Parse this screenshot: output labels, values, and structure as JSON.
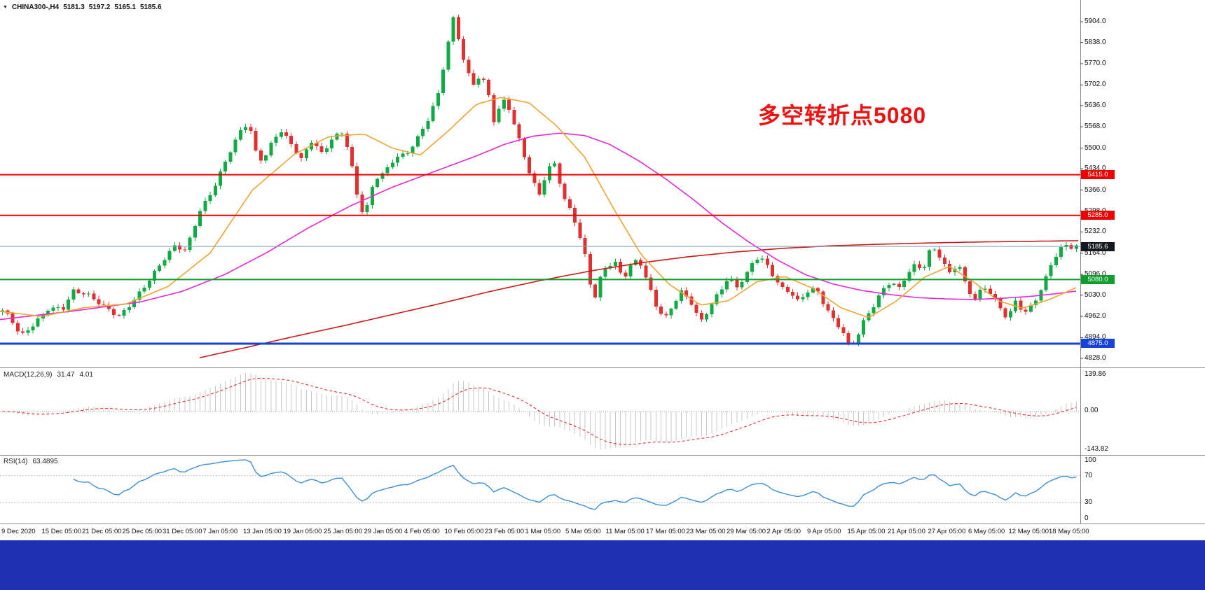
{
  "window": {
    "symbol_info": {
      "symbol": "CHINA300-,H4",
      "open": "5181.3",
      "high": "5197.2",
      "low": "5165.1",
      "close": "5185.6"
    },
    "annotation": "多空转折点5080"
  },
  "colors": {
    "bull": "#10ab44",
    "bear": "#e03030",
    "ma_fast": "#f0a432",
    "ma_mid": "#e428d2",
    "ma_slow": "#cc1a1a",
    "hline_red": "#ee0000",
    "hline_green": "#0f9d2e",
    "hline_blue": "#1542d8",
    "current_price_line": "#7f9fbf",
    "current_price_bg": "#151a22",
    "macd_hist": "#c9c9c9",
    "macd_signal": "#dd2222",
    "rsi_line": "#3c8fd4",
    "annotation_red": "#f01010",
    "taskbar_blue": "#1f2fb4"
  },
  "price_axis": {
    "ticks": [
      "5904.0",
      "5838.0",
      "5770.0",
      "5702.0",
      "5636.0",
      "5568.0",
      "5500.0",
      "5434.0",
      "5366.0",
      "5298.0",
      "5232.0",
      "5164.0",
      "5096.0",
      "5030.0",
      "4962.0",
      "4894.0",
      "4828.0"
    ],
    "tick_prices": [
      5904,
      5838,
      5770,
      5702,
      5636,
      5568,
      5500,
      5434,
      5366,
      5298,
      5232,
      5164,
      5096,
      5030,
      4962,
      4894,
      4828
    ],
    "special_labels": [
      {
        "value": "5415.0",
        "price": 5415,
        "bg": "#ee0000"
      },
      {
        "value": "5285.0",
        "price": 5285,
        "bg": "#ee0000"
      },
      {
        "value": "5185.6",
        "price": 5185.6,
        "bg": "#151a22"
      },
      {
        "value": "5080.0",
        "price": 5080,
        "bg": "#0f9d2e"
      },
      {
        "value": "4875.0",
        "price": 4875,
        "bg": "#1542d8"
      }
    ]
  },
  "time_axis": {
    "labels": [
      "9 Dec 2020",
      "15 Dec 05:00",
      "21 Dec 05:00",
      "25 Dec 05:00",
      "31 Dec 05:00",
      "7 Jan 05:00",
      "13 Jan 05:00",
      "19 Jan 05:00",
      "25 Jan 05:00",
      "29 Jan 05:00",
      "4 Feb 05:00",
      "10 Feb 05:00",
      "23 Feb 05:00",
      "1 Mar 05:00",
      "5 Mar 05:00",
      "11 Mar 05:00",
      "17 Mar 05:00",
      "23 Mar 05:00",
      "29 Mar 05:00",
      "2 Apr 05:00",
      "9 Apr 05:00",
      "15 Apr 05:00",
      "21 Apr 05:00",
      "27 Apr 05:00",
      "6 May 05:00",
      "12 May 05:00",
      "18 May 05:00"
    ]
  },
  "indicators": {
    "macd": {
      "label": "MACD(12,26,9)",
      "value": "31.47",
      "signal_value": "4.01",
      "axis": [
        "139.86",
        "0.00",
        "-143.82"
      ],
      "params": {
        "fast": 12,
        "slow": 26,
        "signal": 9
      }
    },
    "rsi": {
      "label": "RSI(14)",
      "value": "63.4895",
      "axis": [
        "100",
        "70",
        "30",
        "0"
      ],
      "levels": [
        70,
        30
      ],
      "period": 14
    }
  },
  "chart_data": {
    "type": "candlestick",
    "symbol": "CHINA300-",
    "timeframe": "H4",
    "visible_range": {
      "start": "9 Dec 2020",
      "end": "18 May 2021"
    },
    "candle_count": 213,
    "current_price": 5185.6,
    "horizontal_lines": [
      {
        "price": 5415,
        "color": "#ee0000",
        "width": 2
      },
      {
        "price": 5285,
        "color": "#ee0000",
        "width": 2
      },
      {
        "price": 5080,
        "color": "#0f9d2e",
        "width": 2
      },
      {
        "price": 4875,
        "color": "#1542d8",
        "width": 3
      }
    ],
    "price_keyframes": [
      [
        0,
        4985
      ],
      [
        15,
        4955
      ],
      [
        30,
        4900
      ],
      [
        50,
        4945
      ],
      [
        70,
        4990
      ],
      [
        90,
        4985
      ],
      [
        105,
        5040
      ],
      [
        125,
        5030
      ],
      [
        150,
        4995
      ],
      [
        170,
        4965
      ],
      [
        190,
        5010
      ],
      [
        210,
        5065
      ],
      [
        230,
        5130
      ],
      [
        250,
        5190
      ],
      [
        265,
        5175
      ],
      [
        285,
        5300
      ],
      [
        305,
        5370
      ],
      [
        325,
        5470
      ],
      [
        345,
        5560
      ],
      [
        355,
        5580
      ],
      [
        365,
        5490
      ],
      [
        375,
        5460
      ],
      [
        390,
        5530
      ],
      [
        400,
        5560
      ],
      [
        415,
        5515
      ],
      [
        430,
        5460
      ],
      [
        445,
        5520
      ],
      [
        460,
        5480
      ],
      [
        475,
        5535
      ],
      [
        490,
        5555
      ],
      [
        500,
        5470
      ],
      [
        510,
        5350
      ],
      [
        520,
        5280
      ],
      [
        535,
        5400
      ],
      [
        550,
        5420
      ],
      [
        565,
        5470
      ],
      [
        580,
        5480
      ],
      [
        595,
        5530
      ],
      [
        610,
        5590
      ],
      [
        625,
        5670
      ],
      [
        640,
        5840
      ],
      [
        648,
        5920
      ],
      [
        656,
        5830
      ],
      [
        665,
        5750
      ],
      [
        675,
        5700
      ],
      [
        685,
        5730
      ],
      [
        695,
        5700
      ],
      [
        705,
        5590
      ],
      [
        713,
        5630
      ],
      [
        722,
        5665
      ],
      [
        732,
        5590
      ],
      [
        745,
        5500
      ],
      [
        758,
        5400
      ],
      [
        770,
        5350
      ],
      [
        782,
        5430
      ],
      [
        792,
        5450
      ],
      [
        805,
        5340
      ],
      [
        818,
        5290
      ],
      [
        830,
        5200
      ],
      [
        840,
        5120
      ],
      [
        846,
        4990
      ],
      [
        854,
        5070
      ],
      [
        865,
        5120
      ],
      [
        878,
        5130
      ],
      [
        890,
        5080
      ],
      [
        902,
        5130
      ],
      [
        912,
        5145
      ],
      [
        925,
        5070
      ],
      [
        938,
        4990
      ],
      [
        950,
        4960
      ],
      [
        962,
        5005
      ],
      [
        972,
        5040
      ],
      [
        985,
        5010
      ],
      [
        1000,
        4940
      ],
      [
        1012,
        4985
      ],
      [
        1025,
        5035
      ],
      [
        1040,
        5090
      ],
      [
        1052,
        5060
      ],
      [
        1065,
        5095
      ],
      [
        1078,
        5150
      ],
      [
        1090,
        5140
      ],
      [
        1102,
        5095
      ],
      [
        1115,
        5050
      ],
      [
        1128,
        5040
      ],
      [
        1140,
        5010
      ],
      [
        1152,
        5045
      ],
      [
        1165,
        5055
      ],
      [
        1178,
        4995
      ],
      [
        1190,
        4950
      ],
      [
        1202,
        4915
      ],
      [
        1212,
        4865
      ],
      [
        1222,
        4885
      ],
      [
        1235,
        4955
      ],
      [
        1248,
        5000
      ],
      [
        1260,
        5050
      ],
      [
        1272,
        5080
      ],
      [
        1282,
        5050
      ],
      [
        1294,
        5095
      ],
      [
        1306,
        5125
      ],
      [
        1318,
        5110
      ],
      [
        1330,
        5185
      ],
      [
        1342,
        5150
      ],
      [
        1355,
        5100
      ],
      [
        1368,
        5135
      ],
      [
        1380,
        5055
      ],
      [
        1392,
        5020
      ],
      [
        1404,
        5060
      ],
      [
        1416,
        5030
      ],
      [
        1428,
        4985
      ],
      [
        1438,
        4950
      ],
      [
        1450,
        5010
      ],
      [
        1462,
        4970
      ],
      [
        1475,
        5005
      ],
      [
        1488,
        5060
      ],
      [
        1500,
        5130
      ],
      [
        1512,
        5175
      ],
      [
        1522,
        5190
      ],
      [
        1532,
        5178
      ],
      [
        1540,
        5186
      ]
    ],
    "ma_fast_keyframes": [
      [
        0,
        4978
      ],
      [
        60,
        4962
      ],
      [
        120,
        4990
      ],
      [
        180,
        5002
      ],
      [
        240,
        5058
      ],
      [
        300,
        5165
      ],
      [
        360,
        5365
      ],
      [
        420,
        5480
      ],
      [
        470,
        5537
      ],
      [
        520,
        5545
      ],
      [
        560,
        5500
      ],
      [
        600,
        5478
      ],
      [
        640,
        5555
      ],
      [
        680,
        5640
      ],
      [
        715,
        5662
      ],
      [
        755,
        5645
      ],
      [
        795,
        5570
      ],
      [
        835,
        5470
      ],
      [
        875,
        5310
      ],
      [
        915,
        5160
      ],
      [
        955,
        5065
      ],
      [
        1000,
        4998
      ],
      [
        1040,
        5012
      ],
      [
        1080,
        5072
      ],
      [
        1120,
        5090
      ],
      [
        1160,
        5052
      ],
      [
        1200,
        4990
      ],
      [
        1240,
        4958
      ],
      [
        1280,
        5012
      ],
      [
        1320,
        5088
      ],
      [
        1355,
        5122
      ],
      [
        1390,
        5072
      ],
      [
        1425,
        5012
      ],
      [
        1460,
        4988
      ],
      [
        1500,
        5018
      ],
      [
        1540,
        5058
      ]
    ],
    "ma_mid_keyframes": [
      [
        0,
        4952
      ],
      [
        100,
        4978
      ],
      [
        200,
        5008
      ],
      [
        260,
        5042
      ],
      [
        320,
        5095
      ],
      [
        380,
        5165
      ],
      [
        440,
        5245
      ],
      [
        500,
        5315
      ],
      [
        560,
        5375
      ],
      [
        620,
        5425
      ],
      [
        680,
        5475
      ],
      [
        720,
        5512
      ],
      [
        760,
        5538
      ],
      [
        800,
        5548
      ],
      [
        835,
        5540
      ],
      [
        870,
        5512
      ],
      [
        910,
        5462
      ],
      [
        950,
        5402
      ],
      [
        990,
        5335
      ],
      [
        1030,
        5262
      ],
      [
        1070,
        5198
      ],
      [
        1110,
        5142
      ],
      [
        1150,
        5095
      ],
      [
        1190,
        5065
      ],
      [
        1230,
        5045
      ],
      [
        1270,
        5032
      ],
      [
        1310,
        5022
      ],
      [
        1350,
        5018
      ],
      [
        1390,
        5016
      ],
      [
        1430,
        5020
      ],
      [
        1470,
        5026
      ],
      [
        1505,
        5034
      ],
      [
        1540,
        5044
      ]
    ],
    "ma_slow_keyframes": [
      [
        285,
        4830
      ],
      [
        350,
        4862
      ],
      [
        420,
        4898
      ],
      [
        490,
        4932
      ],
      [
        560,
        4968
      ],
      [
        630,
        5004
      ],
      [
        700,
        5042
      ],
      [
        770,
        5076
      ],
      [
        840,
        5106
      ],
      [
        910,
        5132
      ],
      [
        980,
        5152
      ],
      [
        1050,
        5168
      ],
      [
        1120,
        5180
      ],
      [
        1190,
        5188
      ],
      [
        1260,
        5193
      ],
      [
        1330,
        5197
      ],
      [
        1400,
        5200
      ],
      [
        1470,
        5202
      ],
      [
        1540,
        5204
      ]
    ]
  }
}
